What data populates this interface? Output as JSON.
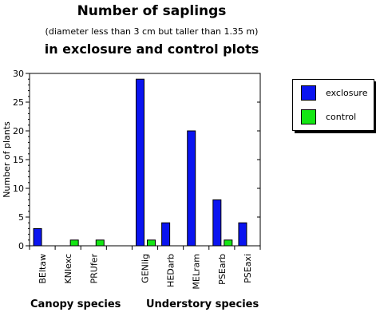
{
  "title_line1": "Number of saplings",
  "subtitle": "(diameter less than 3 cm but taller than 1.35 m)",
  "title_line2": "in exclosure and control plots",
  "groups": {
    "canopy": "Canopy species",
    "understory": "Understory species"
  },
  "colors": {
    "exclosure": "#0a14f0",
    "control": "#14e614"
  },
  "chart_data": {
    "type": "bar",
    "categories": [
      "BEltaw",
      "KNIexc",
      "PRUfer",
      "",
      "GENlig",
      "HEDarb",
      "MELram",
      "PSEarb",
      "PSEaxi"
    ],
    "series": [
      {
        "name": "exclosure",
        "values": [
          3,
          0,
          0,
          0,
          29,
          4,
          20,
          8,
          4
        ]
      },
      {
        "name": "control",
        "values": [
          0,
          1,
          1,
          0,
          1,
          0,
          0,
          1,
          0
        ]
      }
    ],
    "xlabel": "",
    "ylabel": "Number of plants",
    "ylim": [
      0,
      30
    ],
    "yticks": [
      0,
      5,
      10,
      15,
      20,
      25,
      30
    ],
    "legend": "right",
    "grid": false
  }
}
